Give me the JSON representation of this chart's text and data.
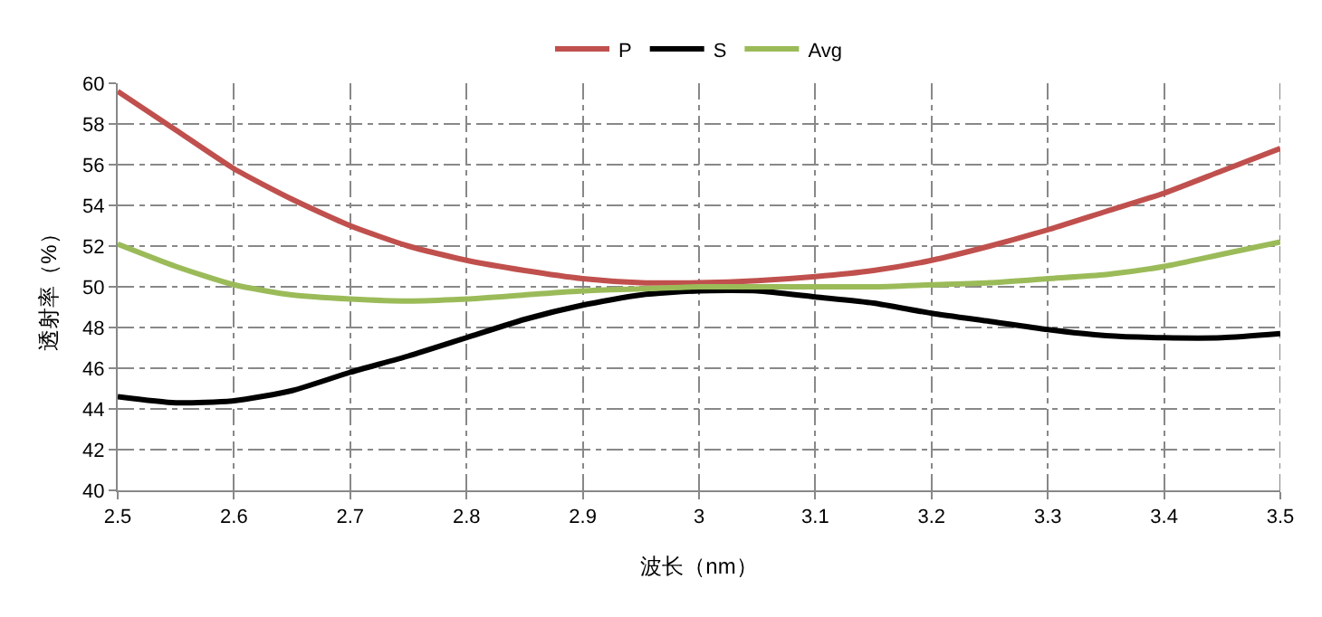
{
  "chart_data": {
    "type": "line",
    "xlabel": "波长（nm）",
    "ylabel": "透射率（%）",
    "x": [
      2.5,
      2.55,
      2.6,
      2.65,
      2.7,
      2.75,
      2.8,
      2.85,
      2.9,
      2.95,
      3.0,
      3.05,
      3.1,
      3.15,
      3.2,
      3.25,
      3.3,
      3.35,
      3.4,
      3.45,
      3.5
    ],
    "series": [
      {
        "name": "P",
        "color": "#c0504d",
        "values": [
          59.6,
          57.7,
          55.8,
          54.3,
          53.0,
          52.0,
          51.3,
          50.8,
          50.4,
          50.2,
          50.2,
          50.3,
          50.5,
          50.8,
          51.3,
          52.0,
          52.8,
          53.7,
          54.6,
          55.7,
          56.8
        ]
      },
      {
        "name": "S",
        "color": "#000000",
        "values": [
          44.6,
          44.3,
          44.4,
          44.9,
          45.8,
          46.6,
          47.5,
          48.4,
          49.1,
          49.6,
          49.8,
          49.8,
          49.5,
          49.2,
          48.7,
          48.3,
          47.9,
          47.6,
          47.5,
          47.5,
          47.7
        ]
      },
      {
        "name": "Avg",
        "color": "#9bbb59",
        "values": [
          52.1,
          51.0,
          50.1,
          49.6,
          49.4,
          49.3,
          49.4,
          49.6,
          49.8,
          49.9,
          50.0,
          50.0,
          50.0,
          50.0,
          50.1,
          50.2,
          50.4,
          50.6,
          51.0,
          51.6,
          52.2
        ]
      }
    ],
    "xlim": [
      2.5,
      3.5
    ],
    "xticks": [
      2.5,
      2.6,
      2.7,
      2.8,
      2.9,
      3,
      3.1,
      3.2,
      3.3,
      3.4,
      3.5
    ],
    "ylim": [
      40,
      60
    ],
    "yticks": [
      40,
      42,
      44,
      46,
      48,
      50,
      52,
      54,
      56,
      58,
      60
    ],
    "grid": true,
    "legend": "top",
    "marker": "none",
    "line_style": "solid"
  }
}
